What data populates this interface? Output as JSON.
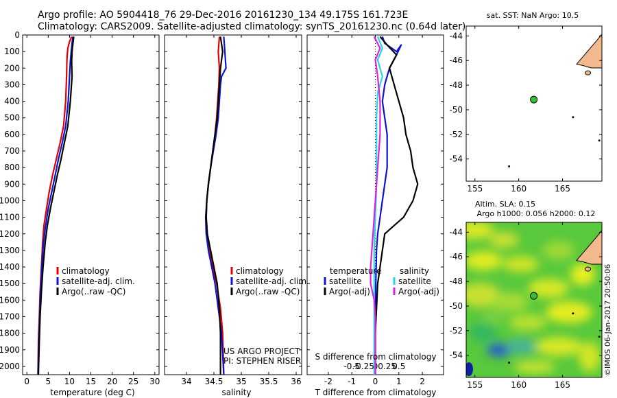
{
  "header": {
    "line1": "Argo profile: AO 5904418_76 29-Dec-2016 20161230_134 49.175S 161.723E",
    "line2": "Climatology: CARS2009. Satellite-adjusted climatology: synTS_20161230.nc (0.64d later)"
  },
  "watermark": "©IMOS 06-Jan-2017 20:50:06",
  "colors": {
    "climatology": "#e00000",
    "satellite": "#0a14d0",
    "argo": "#000000",
    "sal_satellite": "#22d8e8",
    "sal_argo": "#e020e0",
    "land": "#f3b98e",
    "float": "#30c030"
  },
  "chart_data": [
    {
      "type": "line",
      "xlabel": "temperature (deg C)",
      "xlim": [
        -1,
        31
      ],
      "xticks": [
        0,
        5,
        10,
        15,
        20,
        25,
        30
      ],
      "ylim": [
        0,
        2050
      ],
      "yticks": [
        0,
        100,
        200,
        300,
        400,
        500,
        600,
        700,
        800,
        900,
        1000,
        1100,
        1200,
        1300,
        1400,
        1500,
        1600,
        1700,
        1800,
        1900,
        2000
      ],
      "legend": [
        "climatology",
        "satellite-adj. clim.",
        "Argo(..raw -QC)"
      ],
      "series": [
        {
          "color": "climatology",
          "points": [
            [
              10.5,
              10
            ],
            [
              10,
              40
            ],
            [
              9.6,
              80
            ],
            [
              9.4,
              140
            ],
            [
              9.3,
              250
            ],
            [
              9.1,
              400
            ],
            [
              8.6,
              550
            ],
            [
              7.8,
              650
            ],
            [
              6.9,
              750
            ],
            [
              6.0,
              850
            ],
            [
              5.2,
              950
            ],
            [
              4.6,
              1050
            ],
            [
              4.0,
              1150
            ],
            [
              3.7,
              1250
            ],
            [
              3.4,
              1400
            ],
            [
              3.1,
              1550
            ],
            [
              2.9,
              1700
            ],
            [
              2.7,
              1850
            ],
            [
              2.6,
              2050
            ]
          ]
        },
        {
          "color": "satellite",
          "points": [
            [
              10.8,
              10
            ],
            [
              10.6,
              50
            ],
            [
              10.4,
              100
            ],
            [
              10.2,
              160
            ],
            [
              10.0,
              250
            ],
            [
              9.7,
              400
            ],
            [
              9.1,
              550
            ],
            [
              8.3,
              650
            ],
            [
              7.4,
              750
            ],
            [
              6.6,
              850
            ],
            [
              5.8,
              950
            ],
            [
              5.0,
              1050
            ],
            [
              4.4,
              1150
            ],
            [
              3.9,
              1250
            ],
            [
              3.5,
              1400
            ],
            [
              3.2,
              1550
            ],
            [
              3.0,
              1700
            ],
            [
              2.8,
              1850
            ],
            [
              2.6,
              2050
            ]
          ]
        },
        {
          "color": "argo",
          "points": [
            [
              11.0,
              10
            ],
            [
              10.8,
              50
            ],
            [
              10.6,
              100
            ],
            [
              10.5,
              160
            ],
            [
              10.6,
              250
            ],
            [
              10.2,
              400
            ],
            [
              9.6,
              550
            ],
            [
              8.8,
              650
            ],
            [
              8.0,
              750
            ],
            [
              7.1,
              850
            ],
            [
              6.3,
              950
            ],
            [
              5.5,
              1050
            ],
            [
              4.8,
              1150
            ],
            [
              4.3,
              1250
            ],
            [
              3.8,
              1400
            ],
            [
              3.4,
              1550
            ],
            [
              3.1,
              1700
            ],
            [
              2.9,
              1850
            ],
            [
              2.7,
              2050
            ]
          ]
        }
      ]
    },
    {
      "type": "line",
      "xlabel": "salinity",
      "xlim": [
        33.6,
        36.1
      ],
      "xticks": [
        34,
        34.5,
        35,
        35.5,
        36
      ],
      "ylim": [
        0,
        2050
      ],
      "legend": [
        "climatology",
        "satellite-adj. clim.",
        "Argo(..raw -QC)"
      ],
      "annotation": [
        "US ARGO PROJECT",
        "PI: STEPHEN RISER"
      ],
      "series": [
        {
          "color": "climatology",
          "points": [
            [
              34.6,
              10
            ],
            [
              34.58,
              100
            ],
            [
              34.6,
              200
            ],
            [
              34.59,
              300
            ],
            [
              34.57,
              400
            ],
            [
              34.55,
              500
            ],
            [
              34.52,
              600
            ],
            [
              34.48,
              700
            ],
            [
              34.44,
              800
            ],
            [
              34.4,
              900
            ],
            [
              34.37,
              1000
            ],
            [
              34.36,
              1100
            ],
            [
              34.38,
              1200
            ],
            [
              34.42,
              1300
            ],
            [
              34.48,
              1400
            ],
            [
              34.55,
              1500
            ],
            [
              34.62,
              1650
            ],
            [
              34.66,
              1800
            ],
            [
              34.68,
              2050
            ]
          ]
        },
        {
          "color": "satellite",
          "points": [
            [
              34.68,
              10
            ],
            [
              34.7,
              100
            ],
            [
              34.72,
              200
            ],
            [
              34.64,
              250
            ],
            [
              34.62,
              300
            ],
            [
              34.6,
              400
            ],
            [
              34.58,
              500
            ],
            [
              34.54,
              600
            ],
            [
              34.49,
              700
            ],
            [
              34.44,
              800
            ],
            [
              34.4,
              900
            ],
            [
              34.37,
              1000
            ],
            [
              34.35,
              1100
            ],
            [
              34.36,
              1200
            ],
            [
              34.4,
              1300
            ],
            [
              34.46,
              1400
            ],
            [
              34.52,
              1500
            ],
            [
              34.58,
              1650
            ],
            [
              34.64,
              1800
            ],
            [
              34.68,
              2050
            ]
          ]
        },
        {
          "color": "argo",
          "points": [
            [
              34.62,
              10
            ],
            [
              34.66,
              100
            ],
            [
              34.62,
              200
            ],
            [
              34.6,
              300
            ],
            [
              34.58,
              400
            ],
            [
              34.56,
              500
            ],
            [
              34.52,
              600
            ],
            [
              34.48,
              700
            ],
            [
              34.44,
              800
            ],
            [
              34.4,
              900
            ],
            [
              34.37,
              1000
            ],
            [
              34.36,
              1100
            ],
            [
              34.38,
              1200
            ],
            [
              34.44,
              1300
            ],
            [
              34.5,
              1400
            ],
            [
              34.56,
              1500
            ],
            [
              34.6,
              1650
            ],
            [
              34.62,
              1800
            ],
            [
              34.62,
              2050
            ]
          ]
        }
      ]
    },
    {
      "type": "line",
      "xlabel": "T difference from climatology",
      "xlabel_top": "S difference from climatology",
      "xlim": [
        -2.9,
        2.9
      ],
      "xticks": [
        -2,
        -1,
        0,
        1,
        2
      ],
      "xticks_top": [
        "-0.5",
        "-0.25",
        "0",
        "0.25",
        "0.5"
      ],
      "ylim": [
        0,
        2050
      ],
      "legend_temperature": [
        "temperature",
        "satellite",
        "Argo(-adj)"
      ],
      "legend_salinity": [
        "salinity",
        "satellite",
        "Argo(-adj)"
      ],
      "series": [
        {
          "color": "satellite",
          "points": [
            [
              0.3,
              10
            ],
            [
              0.4,
              50
            ],
            [
              0.7,
              80
            ],
            [
              0.9,
              100
            ],
            [
              1.1,
              60
            ],
            [
              0.9,
              120
            ],
            [
              0.6,
              200
            ],
            [
              0.4,
              300
            ],
            [
              0.3,
              400
            ],
            [
              0.4,
              500
            ],
            [
              0.5,
              600
            ],
            [
              0.5,
              700
            ],
            [
              0.5,
              800
            ],
            [
              0.4,
              900
            ],
            [
              0.3,
              1000
            ],
            [
              0.2,
              1100
            ],
            [
              0.1,
              1200
            ],
            [
              0.05,
              1300
            ],
            [
              0.02,
              1500
            ],
            [
              0.0,
              1700
            ],
            [
              0.0,
              2050
            ]
          ]
        },
        {
          "color": "argo",
          "points": [
            [
              0.2,
              10
            ],
            [
              0.5,
              60
            ],
            [
              0.9,
              120
            ],
            [
              0.6,
              200
            ],
            [
              0.8,
              300
            ],
            [
              1.0,
              400
            ],
            [
              1.2,
              500
            ],
            [
              1.3,
              600
            ],
            [
              1.5,
              700
            ],
            [
              1.6,
              800
            ],
            [
              1.8,
              900
            ],
            [
              1.6,
              1000
            ],
            [
              1.2,
              1100
            ],
            [
              0.8,
              1150
            ],
            [
              0.4,
              1200
            ],
            [
              0.3,
              1300
            ],
            [
              0.2,
              1400
            ],
            [
              0.1,
              1500
            ],
            [
              0.05,
              1650
            ],
            [
              0.0,
              1800
            ],
            [
              0.0,
              2050
            ]
          ]
        },
        {
          "color": "sal_satellite",
          "points": [
            [
              0.1,
              10
            ],
            [
              0.3,
              80
            ],
            [
              0.1,
              150
            ],
            [
              0.3,
              250
            ],
            [
              0.1,
              350
            ],
            [
              0.05,
              500
            ],
            [
              0.05,
              700
            ],
            [
              0.05,
              900
            ],
            [
              0.0,
              1100
            ],
            [
              -0.05,
              1300
            ],
            [
              -0.05,
              1500
            ],
            [
              -0.05,
              1700
            ],
            [
              -0.05,
              2050
            ]
          ]
        },
        {
          "color": "sal_argo",
          "points": [
            [
              -0.05,
              10
            ],
            [
              0.2,
              80
            ],
            [
              0.0,
              150
            ],
            [
              0.1,
              250
            ],
            [
              0.2,
              400
            ],
            [
              0.2,
              600
            ],
            [
              0.1,
              800
            ],
            [
              0.0,
              1000
            ],
            [
              -0.1,
              1200
            ],
            [
              -0.2,
              1400
            ],
            [
              -0.2,
              1500
            ],
            [
              -0.05,
              1600
            ],
            [
              0.0,
              1700
            ],
            [
              0.0,
              2050
            ]
          ]
        }
      ]
    },
    {
      "type": "scatter",
      "title": "sat. SST: NaN Argo: 10.5",
      "xlim": [
        154,
        169.5
      ],
      "xticks": [
        155,
        160,
        165
      ],
      "ylim": [
        -55.8,
        -43.2
      ],
      "yticks": [
        -44,
        -46,
        -48,
        -50,
        -52,
        -54
      ],
      "float_position": [
        161.723,
        -49.175
      ]
    },
    {
      "type": "heatmap",
      "title_line1": "Altim. SLA: 0.15",
      "title_line2": "Argo h1000: 0.056 h2000: 0.12",
      "xlim": [
        154,
        169.5
      ],
      "xticks": [
        155,
        160,
        165
      ],
      "ylim": [
        -55.8,
        -43.2
      ],
      "yticks": [
        -44,
        -46,
        -48,
        -50,
        -52,
        -54
      ],
      "float_position": [
        161.723,
        -49.175
      ]
    }
  ]
}
